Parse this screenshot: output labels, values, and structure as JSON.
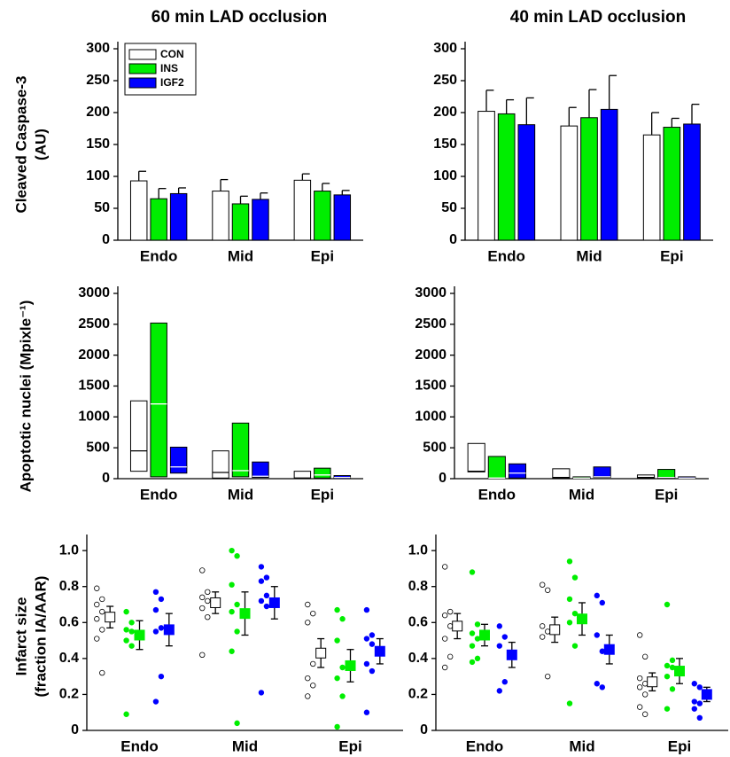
{
  "chart_data": [
    {
      "type": "bar",
      "title": "60 min LAD occlusion",
      "ylabel": [
        "Cleaved Caspase-3",
        "(AU)"
      ],
      "categories": [
        "Endo",
        "Mid",
        "Epi"
      ],
      "ylim": [
        0,
        300
      ],
      "yticks": [
        0,
        50,
        100,
        150,
        200,
        250,
        300
      ],
      "legend": "upper left",
      "series": [
        {
          "name": "CON",
          "color": "#ffffff",
          "values": [
            93,
            77,
            94
          ],
          "errors": [
            15,
            18,
            10
          ]
        },
        {
          "name": "INS",
          "color": "#00ee00",
          "values": [
            65,
            57,
            77
          ],
          "errors": [
            16,
            12,
            12
          ]
        },
        {
          "name": "IGF2",
          "color": "#0000ff",
          "values": [
            73,
            64,
            71
          ],
          "errors": [
            9,
            10,
            7
          ]
        }
      ]
    },
    {
      "type": "bar",
      "title": "40 min LAD occlusion",
      "categories": [
        "Endo",
        "Mid",
        "Epi"
      ],
      "ylim": [
        0,
        300
      ],
      "yticks": [
        0,
        50,
        100,
        150,
        200,
        250,
        300
      ],
      "series": [
        {
          "color": "#ffffff",
          "values": [
            202,
            179,
            165
          ],
          "errors": [
            33,
            29,
            35
          ]
        },
        {
          "color": "#00ee00",
          "values": [
            198,
            192,
            177
          ],
          "errors": [
            22,
            44,
            14
          ]
        },
        {
          "color": "#0000ff",
          "values": [
            181,
            205,
            182
          ],
          "errors": [
            42,
            53,
            31
          ]
        }
      ]
    },
    {
      "type": "range",
      "ylabel": [
        "Apoptotic nuclei (Mpixle⁻¹)"
      ],
      "categories": [
        "Endo",
        "Mid",
        "Epi"
      ],
      "ylim": [
        0,
        3000
      ],
      "yticks": [
        0,
        500,
        1000,
        1500,
        2000,
        2500,
        3000
      ],
      "series": [
        {
          "color": "#ffffff",
          "low": [
            120,
            10,
            0
          ],
          "median": [
            450,
            100,
            10
          ],
          "high": [
            1260,
            450,
            120
          ]
        },
        {
          "color": "#00ee00",
          "low": [
            30,
            30,
            10
          ],
          "median": [
            1210,
            130,
            60
          ],
          "high": [
            2520,
            900,
            170
          ]
        },
        {
          "color": "#0000ff",
          "low": [
            90,
            20,
            0
          ],
          "median": [
            190,
            40,
            20
          ],
          "high": [
            510,
            270,
            50
          ]
        }
      ]
    },
    {
      "type": "range",
      "categories": [
        "Endo",
        "Mid",
        "Epi"
      ],
      "ylim": [
        0,
        3000
      ],
      "yticks": [
        0,
        500,
        1000,
        1500,
        2000,
        2500,
        3000
      ],
      "series": [
        {
          "color": "#ffffff",
          "low": [
            110,
            10,
            10
          ],
          "median": [
            120,
            20,
            20
          ],
          "high": [
            570,
            160,
            60
          ]
        },
        {
          "color": "#00ee00",
          "low": [
            0,
            0,
            10
          ],
          "median": [
            10,
            10,
            20
          ],
          "high": [
            360,
            30,
            150
          ]
        },
        {
          "color": "#0000ff",
          "low": [
            10,
            20,
            0
          ],
          "median": [
            90,
            30,
            10
          ],
          "high": [
            240,
            190,
            30
          ]
        }
      ]
    },
    {
      "type": "dot",
      "ylabel": [
        "Infarct size",
        "(fraction IA/AAR)"
      ],
      "categories": [
        "Endo",
        "Mid",
        "Epi"
      ],
      "ylim": [
        0,
        1.05
      ],
      "yticks": [
        0,
        0.2,
        0.4,
        0.6,
        0.8,
        {
          "value": 1,
          "label": "1.0"
        }
      ],
      "series": [
        {
          "color": "#ffffff",
          "points": [
            [
              0.79,
              0.73,
              0.7,
              0.66,
              0.62,
              0.56,
              0.51,
              0.32
            ],
            [
              0.89,
              0.77,
              0.74,
              0.72,
              0.68,
              0.63,
              0.42
            ],
            [
              0.7,
              0.65,
              0.6,
              0.37,
              0.29,
              0.25,
              0.19
            ]
          ],
          "means": [
            0.63,
            0.71,
            0.43
          ],
          "errors": [
            0.06,
            0.06,
            0.08
          ]
        },
        {
          "color": "#00ee00",
          "points": [
            [
              0.66,
              0.6,
              0.56,
              0.55,
              0.5,
              0.47,
              0.09
            ],
            [
              1.0,
              0.97,
              0.81,
              0.7,
              0.66,
              0.55,
              0.44,
              0.04
            ],
            [
              0.67,
              0.62,
              0.5,
              0.35,
              0.29,
              0.19,
              0.02
            ]
          ],
          "means": [
            0.53,
            0.65,
            0.36
          ],
          "errors": [
            0.08,
            0.12,
            0.09
          ]
        },
        {
          "color": "#0000ff",
          "points": [
            [
              0.77,
              0.73,
              0.67,
              0.57,
              0.55,
              0.3,
              0.16
            ],
            [
              0.91,
              0.85,
              0.83,
              0.75,
              0.72,
              0.69,
              0.21
            ],
            [
              0.67,
              0.53,
              0.51,
              0.48,
              0.37,
              0.33,
              0.1
            ]
          ],
          "means": [
            0.56,
            0.71,
            0.44
          ],
          "errors": [
            0.09,
            0.09,
            0.07
          ]
        }
      ]
    },
    {
      "type": "dot",
      "categories": [
        "Endo",
        "Mid",
        "Epi"
      ],
      "ylim": [
        0,
        1.05
      ],
      "yticks": [
        0,
        0.2,
        0.4,
        0.6,
        0.8,
        {
          "value": 1,
          "label": "1.0"
        }
      ],
      "series": [
        {
          "color": "#ffffff",
          "points": [
            [
              0.91,
              0.66,
              0.64,
              0.58,
              0.51,
              0.41,
              0.35
            ],
            [
              0.81,
              0.78,
              0.58,
              0.55,
              0.52,
              0.3
            ],
            [
              0.53,
              0.41,
              0.29,
              0.26,
              0.24,
              0.2,
              0.13,
              0.09
            ]
          ],
          "means": [
            0.58,
            0.56,
            0.27
          ],
          "errors": [
            0.07,
            0.07,
            0.05
          ]
        },
        {
          "color": "#00ee00",
          "points": [
            [
              0.88,
              0.59,
              0.54,
              0.51,
              0.47,
              0.4,
              0.38
            ],
            [
              0.94,
              0.85,
              0.73,
              0.65,
              0.6,
              0.47,
              0.15
            ],
            [
              0.7,
              0.39,
              0.36,
              0.35,
              0.3,
              0.23,
              0.12
            ]
          ],
          "means": [
            0.53,
            0.62,
            0.33
          ],
          "errors": [
            0.06,
            0.09,
            0.07
          ]
        },
        {
          "color": "#0000ff",
          "points": [
            [
              0.58,
              0.52,
              0.47,
              0.27,
              0.22
            ],
            [
              0.75,
              0.71,
              0.53,
              0.44,
              0.26,
              0.24
            ],
            [
              0.26,
              0.24,
              0.16,
              0.15,
              0.12,
              0.07
            ]
          ],
          "means": [
            0.42,
            0.45,
            0.2
          ],
          "errors": [
            0.07,
            0.08,
            0.04
          ]
        }
      ]
    }
  ]
}
